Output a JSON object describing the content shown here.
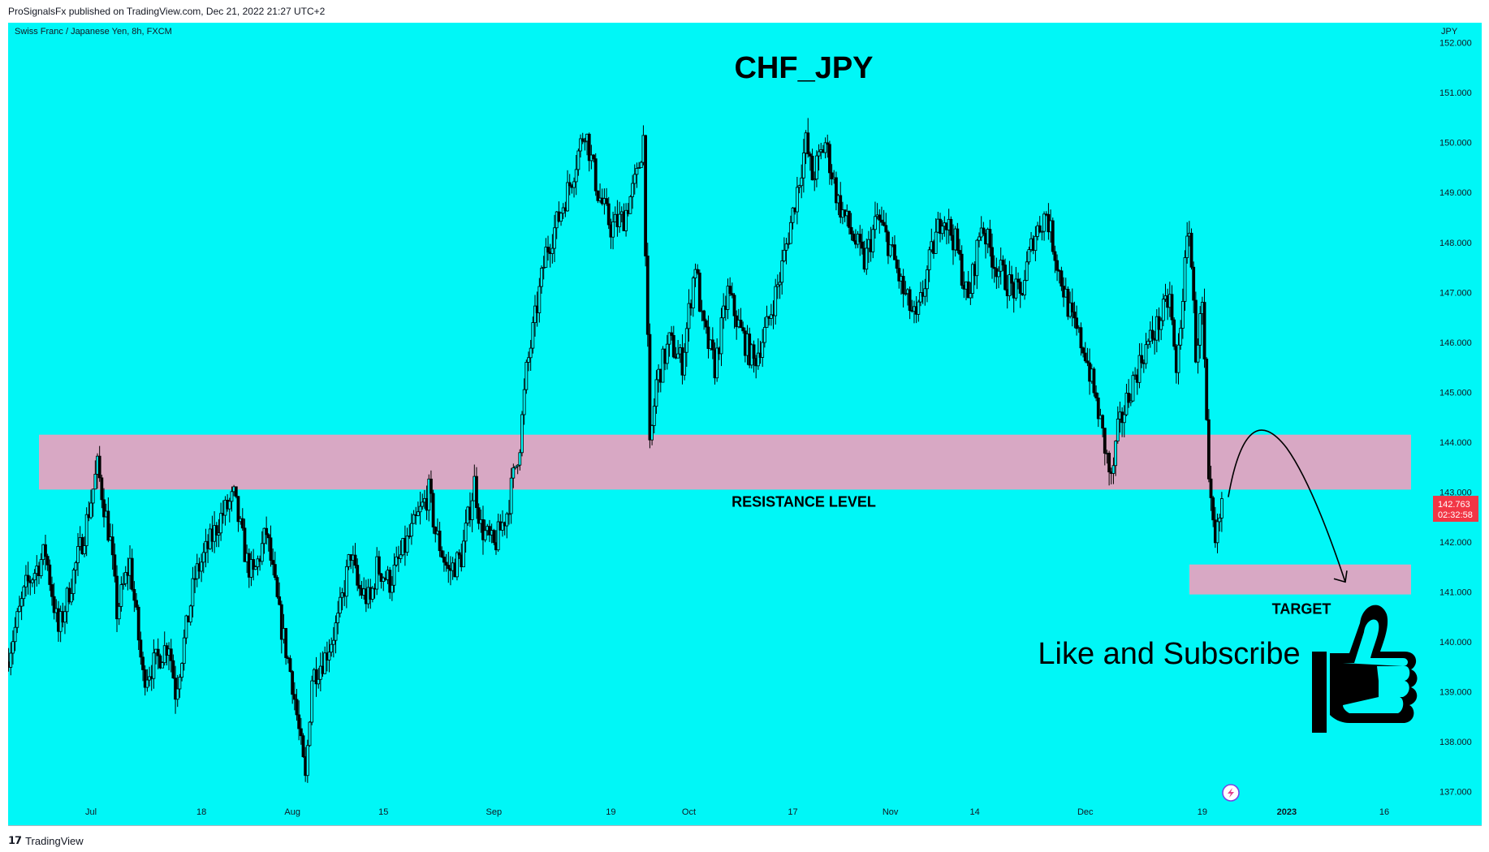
{
  "header": {
    "published": "ProSignalsFx published on TradingView.com, Dec 21, 2022 21:27 UTC+2"
  },
  "footer": {
    "brand": "TradingView"
  },
  "colors": {
    "background": "#00f7f7",
    "zone": "#d8a8c4",
    "price_tag": "#f23645"
  },
  "chart_data": {
    "type": "candlestick",
    "symbol_info": "Swiss Franc / Japanese Yen, 8h, FXCM",
    "title": "CHF_JPY",
    "currency": "JPY",
    "ylim": [
      136.8,
      152.4
    ],
    "yticks": [
      "152.000",
      "151.000",
      "150.000",
      "149.000",
      "148.000",
      "147.000",
      "146.000",
      "145.000",
      "144.000",
      "143.000",
      "142.000",
      "141.000",
      "140.000",
      "139.000",
      "138.000",
      "137.000"
    ],
    "xticks": [
      {
        "label": "Jul",
        "day": 0
      },
      {
        "label": "18",
        "day": 17
      },
      {
        "label": "Aug",
        "day": 31
      },
      {
        "label": "15",
        "day": 45
      },
      {
        "label": "Sep",
        "day": 62
      },
      {
        "label": "19",
        "day": 80
      },
      {
        "label": "Oct",
        "day": 92
      },
      {
        "label": "17",
        "day": 108
      },
      {
        "label": "Nov",
        "day": 123
      },
      {
        "label": "14",
        "day": 136
      },
      {
        "label": "Dec",
        "day": 153
      },
      {
        "label": "19",
        "day": 171
      },
      {
        "label": "2023",
        "day": 184
      },
      {
        "label": "16",
        "day": 199
      }
    ],
    "resistance_zone": {
      "label": "RESISTANCE LEVEL",
      "from": 143.05,
      "to": 144.15
    },
    "target_zone": {
      "label": "TARGET",
      "from": 140.95,
      "to": 141.55
    },
    "last_price": {
      "value": "142.763",
      "countdown": "02:32:58"
    },
    "path": [
      {
        "day": -13,
        "price": 139.6
      },
      {
        "day": -10,
        "price": 141.1
      },
      {
        "day": -7,
        "price": 141.8
      },
      {
        "day": -5,
        "price": 140.2
      },
      {
        "day": -3,
        "price": 141.2
      },
      {
        "day": -1,
        "price": 142.2
      },
      {
        "day": 1,
        "price": 143.5
      },
      {
        "day": 3,
        "price": 142.0
      },
      {
        "day": 4,
        "price": 140.6
      },
      {
        "day": 6,
        "price": 141.6
      },
      {
        "day": 8,
        "price": 139.3
      },
      {
        "day": 10,
        "price": 139.6
      },
      {
        "day": 12,
        "price": 140.0
      },
      {
        "day": 13,
        "price": 139.0
      },
      {
        "day": 15,
        "price": 140.5
      },
      {
        "day": 16,
        "price": 141.3
      },
      {
        "day": 18,
        "price": 141.9
      },
      {
        "day": 20,
        "price": 142.5
      },
      {
        "day": 22,
        "price": 142.9
      },
      {
        "day": 24,
        "price": 141.6
      },
      {
        "day": 25,
        "price": 141.3
      },
      {
        "day": 27,
        "price": 142.2
      },
      {
        "day": 29,
        "price": 140.5
      },
      {
        "day": 31,
        "price": 139.2
      },
      {
        "day": 33,
        "price": 137.2
      },
      {
        "day": 34,
        "price": 139.3
      },
      {
        "day": 36,
        "price": 139.7
      },
      {
        "day": 38,
        "price": 140.4
      },
      {
        "day": 40,
        "price": 141.8
      },
      {
        "day": 41,
        "price": 141.1
      },
      {
        "day": 43,
        "price": 140.8
      },
      {
        "day": 44,
        "price": 141.5
      },
      {
        "day": 46,
        "price": 141.2
      },
      {
        "day": 48,
        "price": 141.8
      },
      {
        "day": 50,
        "price": 142.4
      },
      {
        "day": 52,
        "price": 143.0
      },
      {
        "day": 53,
        "price": 142.2
      },
      {
        "day": 55,
        "price": 141.4
      },
      {
        "day": 57,
        "price": 141.7
      },
      {
        "day": 59,
        "price": 143.2
      },
      {
        "day": 60,
        "price": 142.3
      },
      {
        "day": 62,
        "price": 141.9
      },
      {
        "day": 64,
        "price": 142.6
      },
      {
        "day": 66,
        "price": 144.0
      },
      {
        "day": 67,
        "price": 145.4
      },
      {
        "day": 68,
        "price": 146.2
      },
      {
        "day": 70,
        "price": 147.8
      },
      {
        "day": 72,
        "price": 148.5
      },
      {
        "day": 74,
        "price": 149.3
      },
      {
        "day": 76,
        "price": 150.3
      },
      {
        "day": 78,
        "price": 149.0
      },
      {
        "day": 80,
        "price": 148.3
      },
      {
        "day": 82,
        "price": 148.5
      },
      {
        "day": 84,
        "price": 149.3
      },
      {
        "day": 85,
        "price": 150.1
      },
      {
        "day": 86,
        "price": 143.8
      },
      {
        "day": 87,
        "price": 145.2
      },
      {
        "day": 89,
        "price": 146.0
      },
      {
        "day": 91,
        "price": 145.6
      },
      {
        "day": 93,
        "price": 147.6
      },
      {
        "day": 94,
        "price": 146.4
      },
      {
        "day": 96,
        "price": 145.5
      },
      {
        "day": 98,
        "price": 147.0
      },
      {
        "day": 100,
        "price": 146.2
      },
      {
        "day": 102,
        "price": 145.6
      },
      {
        "day": 104,
        "price": 146.3
      },
      {
        "day": 106,
        "price": 147.3
      },
      {
        "day": 108,
        "price": 148.6
      },
      {
        "day": 110,
        "price": 150.0
      },
      {
        "day": 111,
        "price": 149.3
      },
      {
        "day": 113,
        "price": 150.0
      },
      {
        "day": 115,
        "price": 148.8
      },
      {
        "day": 117,
        "price": 148.2
      },
      {
        "day": 119,
        "price": 147.6
      },
      {
        "day": 121,
        "price": 148.5
      },
      {
        "day": 123,
        "price": 147.9
      },
      {
        "day": 125,
        "price": 147.0
      },
      {
        "day": 127,
        "price": 146.4
      },
      {
        "day": 129,
        "price": 147.6
      },
      {
        "day": 131,
        "price": 148.6
      },
      {
        "day": 133,
        "price": 148.0
      },
      {
        "day": 135,
        "price": 146.8
      },
      {
        "day": 137,
        "price": 148.4
      },
      {
        "day": 139,
        "price": 147.6
      },
      {
        "day": 141,
        "price": 147.2
      },
      {
        "day": 143,
        "price": 146.9
      },
      {
        "day": 145,
        "price": 148.1
      },
      {
        "day": 147,
        "price": 148.6
      },
      {
        "day": 149,
        "price": 147.4
      },
      {
        "day": 151,
        "price": 146.4
      },
      {
        "day": 153,
        "price": 145.8
      },
      {
        "day": 155,
        "price": 144.6
      },
      {
        "day": 157,
        "price": 143.2
      },
      {
        "day": 158,
        "price": 144.2
      },
      {
        "day": 160,
        "price": 145.1
      },
      {
        "day": 162,
        "price": 145.8
      },
      {
        "day": 164,
        "price": 146.3
      },
      {
        "day": 166,
        "price": 146.9
      },
      {
        "day": 167,
        "price": 145.3
      },
      {
        "day": 168,
        "price": 147.0
      },
      {
        "day": 169,
        "price": 148.4
      },
      {
        "day": 170,
        "price": 145.8
      },
      {
        "day": 171,
        "price": 146.7
      },
      {
        "day": 172,
        "price": 143.0
      },
      {
        "day": 173,
        "price": 141.9
      },
      {
        "day": 174,
        "price": 142.763
      }
    ],
    "arrow": {
      "from": {
        "day": 175,
        "price": 142.9
      },
      "peak": {
        "day": 179,
        "price": 143.8
      },
      "to": {
        "day": 193,
        "price": 141.2
      }
    },
    "annotations": [
      "Like and Subscribe"
    ],
    "grid": false,
    "legend": "none"
  }
}
